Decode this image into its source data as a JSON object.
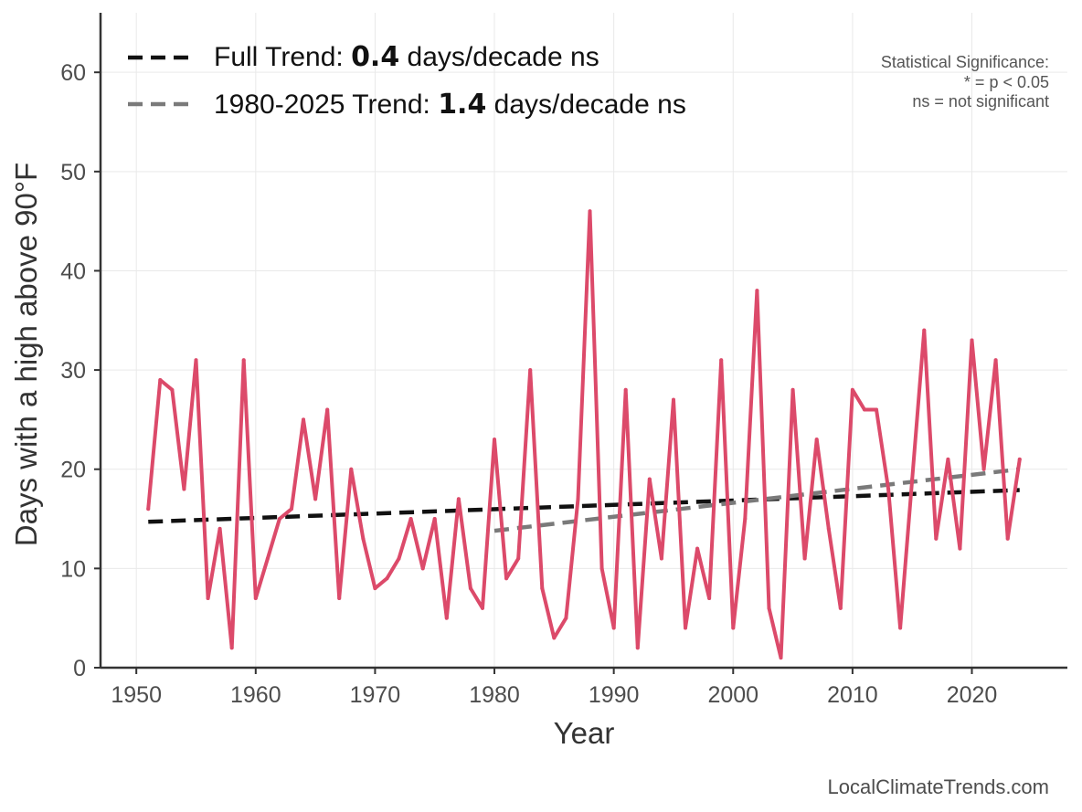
{
  "chart_data": {
    "type": "line",
    "xlabel": "Year",
    "ylabel": "Days with a high above 90°F",
    "xlim": [
      1947,
      2028
    ],
    "ylim": [
      0,
      66
    ],
    "x_ticks": [
      1950,
      1960,
      1970,
      1980,
      1990,
      2000,
      2010,
      2020
    ],
    "y_ticks": [
      0,
      10,
      20,
      30,
      40,
      50,
      60
    ],
    "grid": true,
    "series": [
      {
        "name": "Days with a high above 90°F",
        "color": "#dc4a6a",
        "x": [
          1951,
          1952,
          1953,
          1954,
          1955,
          1956,
          1957,
          1958,
          1959,
          1960,
          1961,
          1962,
          1963,
          1964,
          1965,
          1966,
          1967,
          1968,
          1969,
          1970,
          1971,
          1972,
          1973,
          1974,
          1975,
          1976,
          1977,
          1978,
          1979,
          1980,
          1981,
          1982,
          1983,
          1984,
          1985,
          1986,
          1987,
          1988,
          1989,
          1990,
          1991,
          1992,
          1993,
          1994,
          1995,
          1996,
          1997,
          1998,
          1999,
          2000,
          2001,
          2002,
          2003,
          2004,
          2005,
          2006,
          2007,
          2008,
          2009,
          2010,
          2011,
          2012,
          2013,
          2014,
          2015,
          2016,
          2017,
          2018,
          2019,
          2020,
          2021,
          2022,
          2023,
          2024
        ],
        "values": [
          16,
          29,
          28,
          18,
          31,
          7,
          14,
          2,
          31,
          7,
          11,
          15,
          16,
          25,
          17,
          26,
          7,
          20,
          13,
          8,
          9,
          11,
          15,
          10,
          15,
          5,
          17,
          8,
          6,
          23,
          9,
          11,
          30,
          8,
          3,
          5,
          17,
          46,
          10,
          4,
          28,
          2,
          19,
          11,
          27,
          4,
          12,
          7,
          31,
          4,
          15,
          38,
          6,
          1,
          28,
          11,
          23,
          14,
          6,
          28,
          26,
          26,
          18,
          4,
          19,
          34,
          13,
          21,
          12,
          33,
          20,
          31,
          13,
          21
        ]
      }
    ],
    "trend_lines": [
      {
        "name": "Full Trend",
        "label_prefix": "Full Trend: ",
        "value": "0.4",
        "label_suffix": " days/decade ns",
        "color": "#111111",
        "x": [
          1951,
          2024
        ],
        "y": [
          14.7,
          17.9
        ]
      },
      {
        "name": "1980-2025 Trend",
        "label_prefix": "1980-2025 Trend: ",
        "value": "1.4",
        "label_suffix": " days/decade ns",
        "color": "#7a7a7a",
        "x": [
          1980,
          2024
        ],
        "y": [
          13.8,
          20.0
        ]
      }
    ],
    "significance_note": {
      "title": "Statistical Significance:",
      "line1": "* = p < 0.05",
      "line2": "ns = not significant"
    },
    "credit": "LocalClimateTrends.com"
  }
}
